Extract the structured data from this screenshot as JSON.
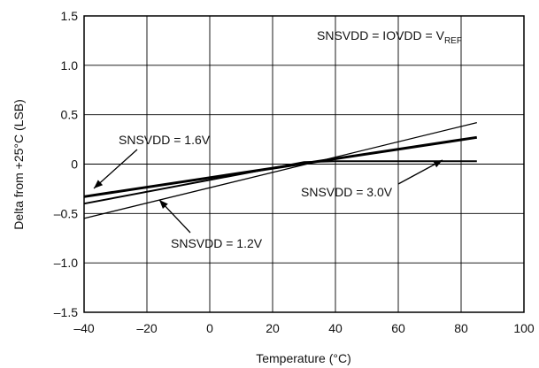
{
  "chart_data": {
    "type": "line",
    "title": "",
    "xlabel": "Temperature (°C)",
    "ylabel": "Delta from +25°C (LSB)",
    "xlim": [
      -40,
      100
    ],
    "ylim": [
      -1.5,
      1.5
    ],
    "x_ticks": [
      -40,
      -20,
      0,
      20,
      40,
      60,
      80,
      100
    ],
    "y_ticks": [
      1.5,
      1.0,
      0.5,
      0,
      -0.5,
      -1.0,
      -1.5
    ],
    "x_tick_labels": [
      "–40",
      "–20",
      "0",
      "20",
      "40",
      "60",
      "80",
      "100"
    ],
    "y_tick_labels": [
      "1.5",
      "1.0",
      "0.5",
      "0",
      "–0.5",
      "–1.0",
      "–1.5"
    ],
    "grid": true,
    "legend": "none",
    "condition_annotation": {
      "text": "SNSVDD = IOVDD = V",
      "subscript": "REF"
    },
    "series": [
      {
        "name": "SNSVDD = 1.2V",
        "x": [
          -40,
          85
        ],
        "y": [
          -0.55,
          0.42
        ],
        "stroke_width": 1.3
      },
      {
        "name": "SNSVDD = 1.6V",
        "x": [
          -40,
          85
        ],
        "y": [
          -0.33,
          0.27
        ],
        "stroke_width": 3.0
      },
      {
        "name": "SNSVDD = 3.0V",
        "x": [
          -40,
          20,
          30,
          40,
          85
        ],
        "y": [
          -0.4,
          -0.04,
          0.02,
          0.03,
          0.03
        ],
        "stroke_width": 2.0
      }
    ],
    "annotations": [
      {
        "label": "SNSVDD = 1.6V",
        "series_index": 1
      },
      {
        "label": "SNSVDD = 1.2V",
        "series_index": 0
      },
      {
        "label": "SNSVDD = 3.0V",
        "series_index": 2
      }
    ]
  }
}
